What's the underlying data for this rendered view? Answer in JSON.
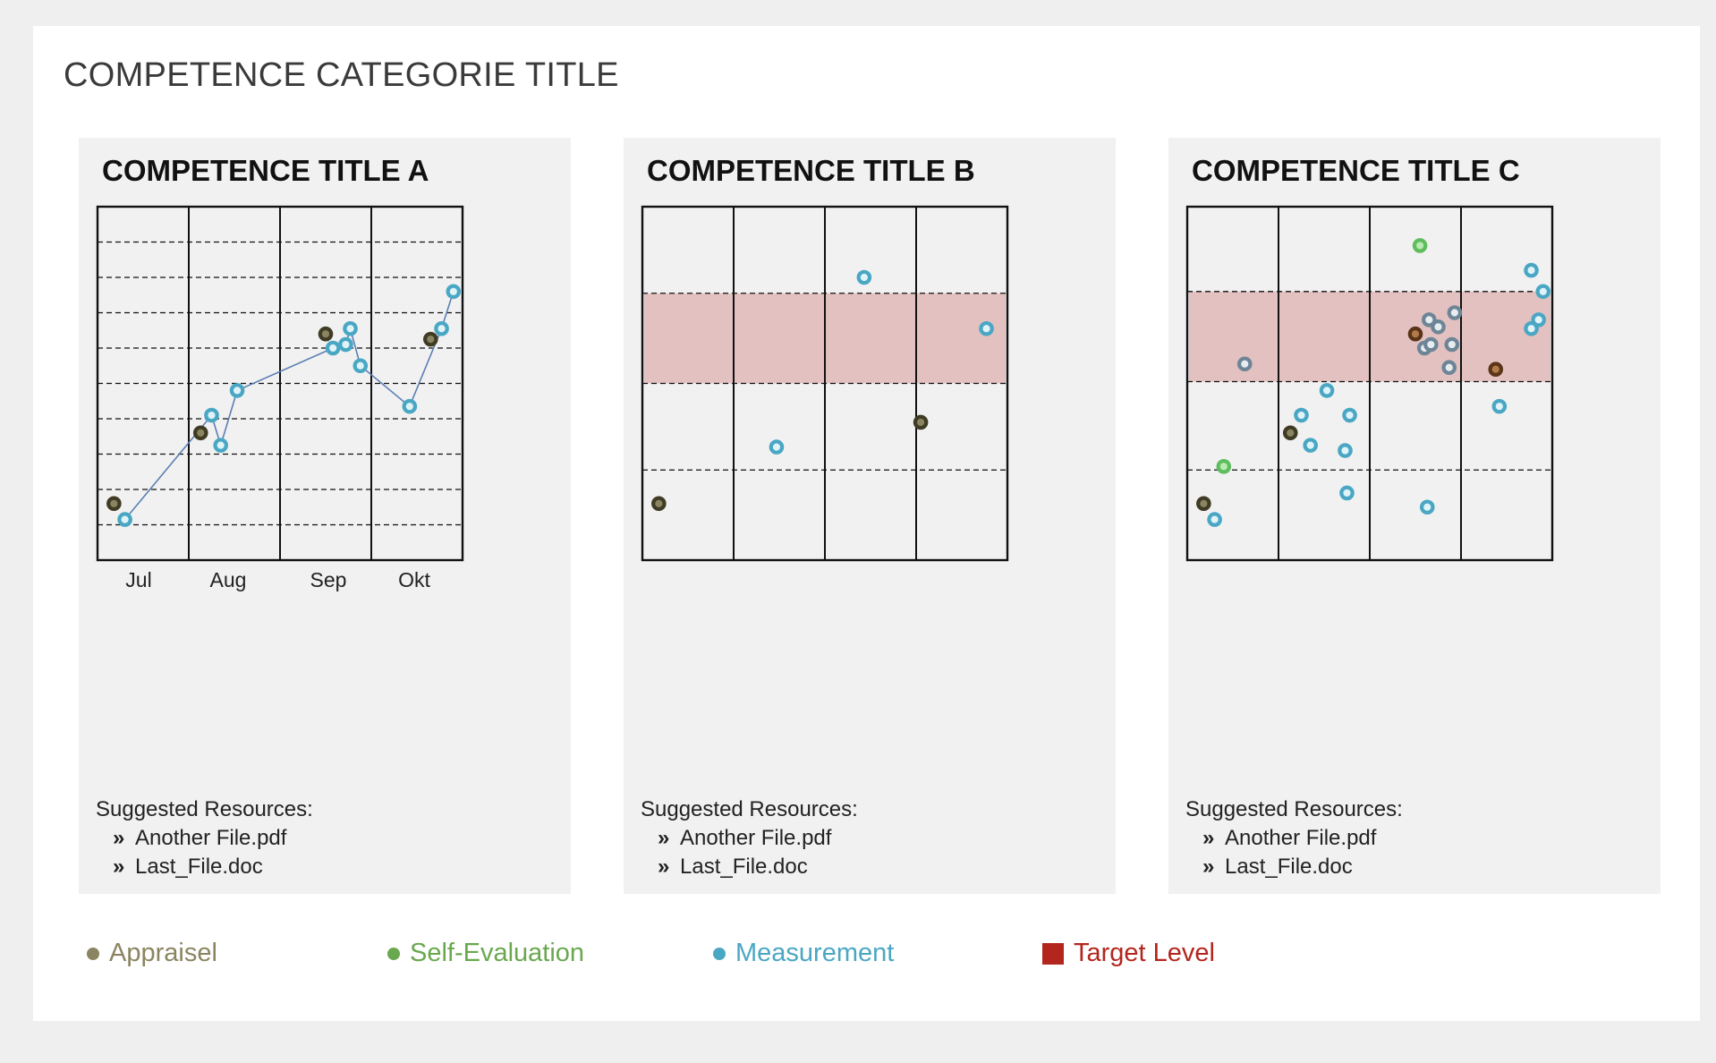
{
  "page_title": "COMPETENCE CATEGORIE TITLE",
  "colors": {
    "appraisal": "#8a8560",
    "appraisal_dark": "#3f3b24",
    "appraisal_brown": "#5b3418",
    "self_evaluation": "#6aa84f",
    "self_eval_bright": "#5ebd5e",
    "measurement": "#4aa7c4",
    "measurement_gray": "#6d8596",
    "target": "#b3261e",
    "target_band": "#e3c1c1",
    "line": "#5b7fb4"
  },
  "panels": [
    {
      "title": "COMPETENCE TITLE A",
      "resources_label": "Suggested Resources:",
      "resources": [
        "Another File.pdf",
        "Last_File.doc"
      ]
    },
    {
      "title": "COMPETENCE TITLE B",
      "resources_label": "Suggested Resources:",
      "resources": [
        "Another File.pdf",
        "Last_File.doc"
      ]
    },
    {
      "title": "COMPETENCE TITLE C",
      "resources_label": "Suggested Resources:",
      "resources": [
        "Another File.pdf",
        "Last_File.doc"
      ]
    }
  ],
  "legend": {
    "appraisal": "Appraisel",
    "self_evaluation": "Self-Evaluation",
    "measurement": "Measurement",
    "target": "Target Level"
  },
  "chart_data": [
    {
      "type": "scatter",
      "title": "COMPETENCE TITLE A",
      "categories": [
        "Jul",
        "Aug",
        "Sep",
        "Okt"
      ],
      "xlim": [
        0,
        4
      ],
      "ylim": [
        0,
        10
      ],
      "gridlines": [
        1,
        2,
        3,
        4,
        5,
        6,
        7,
        8,
        9
      ],
      "target_band": null,
      "connected_series": "measurement",
      "series": [
        {
          "name": "Appraisel",
          "style": "appraisal_dark",
          "points": [
            [
              0.18,
              1.6
            ],
            [
              1.13,
              3.6
            ],
            [
              2.5,
              6.4
            ],
            [
              3.65,
              6.25
            ]
          ]
        },
        {
          "name": "Measurement",
          "style": "measurement",
          "points": [
            [
              0.3,
              1.15
            ],
            [
              1.25,
              4.1
            ],
            [
              1.35,
              3.25
            ],
            [
              1.53,
              4.8
            ],
            [
              2.58,
              6.0
            ],
            [
              2.72,
              6.1
            ],
            [
              2.77,
              6.55
            ],
            [
              2.88,
              5.5
            ],
            [
              3.42,
              4.35
            ],
            [
              3.77,
              6.55
            ],
            [
              3.9,
              7.6
            ]
          ]
        }
      ]
    },
    {
      "type": "scatter",
      "title": "COMPETENCE TITLE B",
      "categories": [],
      "xlim": [
        0,
        4
      ],
      "ylim": [
        0,
        10
      ],
      "gridlines": [
        2.55,
        5.0,
        7.55
      ],
      "target_band": [
        5.0,
        7.55
      ],
      "connected_series": null,
      "series": [
        {
          "name": "Appraisel",
          "style": "appraisal_dark",
          "points": [
            [
              0.18,
              1.6
            ],
            [
              3.05,
              3.9
            ]
          ]
        },
        {
          "name": "Measurement",
          "style": "measurement",
          "points": [
            [
              1.47,
              3.2
            ],
            [
              2.43,
              8.0
            ],
            [
              3.77,
              6.55
            ]
          ]
        }
      ]
    },
    {
      "type": "scatter",
      "title": "COMPETENCE TITLE C",
      "categories": [],
      "xlim": [
        0,
        4
      ],
      "ylim": [
        0,
        10
      ],
      "gridlines": [
        2.55,
        5.05,
        7.6
      ],
      "target_band": [
        5.05,
        7.6
      ],
      "connected_series": null,
      "series": [
        {
          "name": "Appraisel",
          "style": "appraisal_dark",
          "points": [
            [
              0.18,
              1.6
            ],
            [
              1.13,
              3.6
            ]
          ]
        },
        {
          "name": "Appraisel",
          "style": "appraisal_brown",
          "points": [
            [
              2.5,
              6.4
            ],
            [
              3.38,
              5.4
            ]
          ]
        },
        {
          "name": "Self-Evaluation",
          "style": "self_eval_bright",
          "points": [
            [
              0.4,
              2.65
            ],
            [
              2.55,
              8.9
            ]
          ]
        },
        {
          "name": "Measurement",
          "style": "measurement",
          "points": [
            [
              0.3,
              1.15
            ],
            [
              1.25,
              4.1
            ],
            [
              1.35,
              3.25
            ],
            [
              1.53,
              4.8
            ],
            [
              1.78,
              4.1
            ],
            [
              1.73,
              3.1
            ],
            [
              1.75,
              1.9
            ],
            [
              2.63,
              1.5
            ],
            [
              3.42,
              4.35
            ],
            [
              3.77,
              8.2
            ],
            [
              3.9,
              7.6
            ],
            [
              3.77,
              6.55
            ],
            [
              3.85,
              6.8
            ]
          ]
        },
        {
          "name": "Measurement",
          "style": "measurement_gray",
          "points": [
            [
              0.63,
              5.55
            ],
            [
              2.6,
              6.0
            ],
            [
              2.67,
              6.1
            ],
            [
              2.65,
              6.8
            ],
            [
              2.75,
              6.6
            ],
            [
              2.9,
              6.1
            ],
            [
              2.93,
              7.0
            ],
            [
              2.87,
              5.45
            ]
          ]
        }
      ]
    }
  ]
}
